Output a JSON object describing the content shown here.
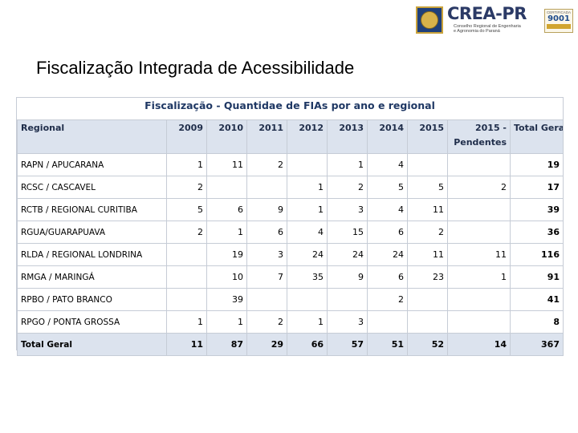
{
  "slide_title": "Fiscalização Integrada de Acessibilidade",
  "logo": {
    "name": "CREA-PR",
    "subtitle_line1": "Conselho Regional de Engenharia",
    "subtitle_line2": "e Agronomia do Paraná",
    "iso_label": "CERTIFICADA",
    "iso_number": "9001"
  },
  "table": {
    "caption": "Fiscalização - Quantidae de FIAs por ano e regional",
    "headers": [
      "Regional",
      "2009",
      "2010",
      "2011",
      "2012",
      "2013",
      "2014",
      "2015",
      "2015 - Pendentes",
      "Total Geral"
    ],
    "rows": [
      {
        "regional": "RAPN / APUCARANA",
        "values": [
          "1",
          "11",
          "2",
          "",
          "1",
          "4",
          "",
          ""
        ],
        "total": "19"
      },
      {
        "regional": "RCSC / CASCAVEL",
        "values": [
          "2",
          "",
          "",
          "1",
          "2",
          "5",
          "5",
          "2"
        ],
        "total": "17"
      },
      {
        "regional": "RCTB / REGIONAL CURITIBA",
        "values": [
          "5",
          "6",
          "9",
          "1",
          "3",
          "4",
          "11",
          ""
        ],
        "total": "39"
      },
      {
        "regional": "RGUA/GUARAPUAVA",
        "values": [
          "2",
          "1",
          "6",
          "4",
          "15",
          "6",
          "2",
          ""
        ],
        "total": "36"
      },
      {
        "regional": "RLDA / REGIONAL LONDRINA",
        "values": [
          "",
          "19",
          "3",
          "24",
          "24",
          "24",
          "11",
          "11"
        ],
        "total": "116"
      },
      {
        "regional": "RMGA / MARINGÁ",
        "values": [
          "",
          "10",
          "7",
          "35",
          "9",
          "6",
          "23",
          "1"
        ],
        "total": "91"
      },
      {
        "regional": "RPBO / PATO BRANCO",
        "values": [
          "",
          "39",
          "",
          "",
          "",
          "2",
          "",
          ""
        ],
        "total": "41"
      },
      {
        "regional": "RPGO / PONTA GROSSA",
        "values": [
          "1",
          "1",
          "2",
          "1",
          "3",
          "",
          "",
          ""
        ],
        "total": "8"
      }
    ],
    "total_row": {
      "label": "Total Geral",
      "values": [
        "11",
        "87",
        "29",
        "66",
        "57",
        "51",
        "52",
        "14"
      ],
      "total": "367"
    }
  }
}
